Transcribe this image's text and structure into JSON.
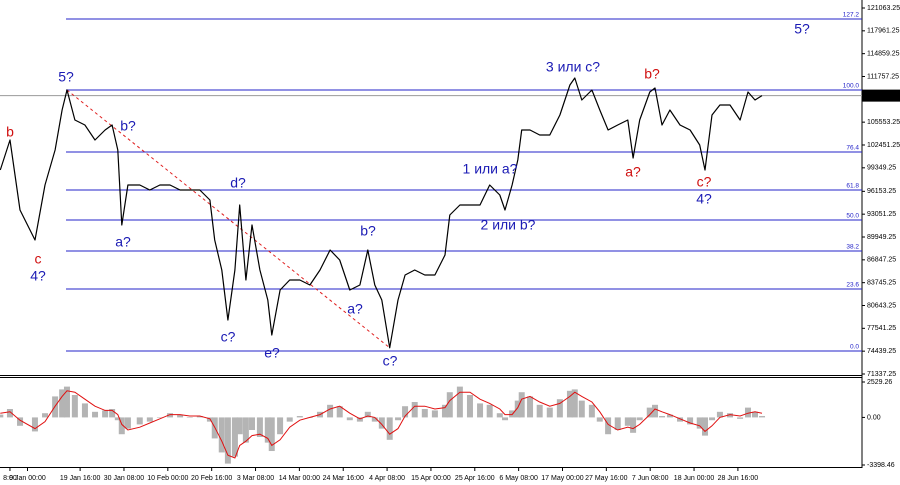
{
  "chart_data": [
    {
      "type": "line",
      "xlim": [
        -6.27,
        190.3
      ],
      "ylim": [
        71200,
        122150
      ],
      "yticks": [
        121063.25,
        117961.25,
        114859.25,
        111757.25,
        105553.25,
        102451.25,
        99349.25,
        96153.25,
        93051.25,
        89949.25,
        86847.25,
        83745.25,
        80643.25,
        77541.25,
        74439.25,
        71337.25
      ],
      "current_price": 109158.38,
      "x": [
        -6.2,
        -4.0,
        -1.7,
        1.7,
        4.0,
        6.3,
        7.9,
        9.0,
        10.8,
        13.1,
        15.4,
        17.7,
        19.3,
        20.6,
        21.5,
        22.9,
        25.6,
        27.9,
        30.2,
        32.5,
        34.8,
        37.0,
        39.3,
        41.6,
        42.7,
        44.3,
        45.7,
        47.3,
        48.4,
        49.8,
        51.2,
        53.0,
        54.8,
        55.7,
        57.6,
        59.8,
        62.1,
        64.4,
        66.7,
        69.0,
        71.2,
        73.5,
        75.8,
        77.6,
        79.2,
        80.8,
        82.6,
        84.5,
        86.1,
        88.3,
        90.6,
        92.9,
        95.2,
        96.3,
        98.6,
        100.9,
        103.2,
        105.4,
        107.7,
        108.9,
        110.5,
        111.8,
        112.7,
        114.6,
        116.8,
        119.1,
        121.4,
        123.7,
        124.8,
        126.4,
        128.7,
        130.5,
        132.4,
        134.6,
        136.9,
        138.1,
        139.6,
        141.9,
        143.1,
        144.7,
        146.5,
        148.8,
        151.1,
        153.3,
        154.5,
        156.1,
        157.9,
        160.2,
        162.5,
        164.3,
        165.9,
        167.5
      ],
      "series": [
        {
          "color": "#000000",
          "values": [
            99050,
            103130,
            93620,
            89540,
            97010,
            101770,
            107200,
            109920,
            105850,
            105170,
            103130,
            104490,
            105170,
            101770,
            91580,
            97010,
            97010,
            96330,
            97010,
            97010,
            96330,
            96330,
            96330,
            94980,
            89540,
            85470,
            78670,
            85470,
            94300,
            84110,
            91580,
            85470,
            81390,
            76630,
            82750,
            84110,
            84110,
            83430,
            85470,
            88180,
            86820,
            82750,
            83430,
            88180,
            83430,
            81390,
            74900,
            81390,
            84790,
            85470,
            84790,
            84790,
            87500,
            92940,
            94300,
            94300,
            94300,
            97010,
            95660,
            93620,
            97010,
            100410,
            104490,
            104490,
            103810,
            103810,
            106530,
            110600,
            111550,
            108560,
            109920,
            107200,
            104490,
            105170,
            105850,
            100680,
            105850,
            109650,
            110190,
            105170,
            107200,
            105170,
            104490,
            102450,
            99050,
            106530,
            107880,
            107880,
            105850,
            109650,
            108560,
            109160
          ]
        }
      ],
      "levels": [
        {
          "value": 119568,
          "label": "127.2"
        },
        {
          "value": 109920,
          "label": "100.0"
        },
        {
          "value": 101498,
          "label": "76.4"
        },
        {
          "value": 96335,
          "label": "61.8"
        },
        {
          "value": 92259,
          "label": "50.0"
        },
        {
          "value": 88046,
          "label": "38.2"
        },
        {
          "value": 82885,
          "label": "23.6"
        },
        {
          "value": 74460,
          "label": "0.0"
        }
      ],
      "level_color": "#2323c8",
      "trendline": {
        "x": [
          9.0,
          82.6
        ],
        "y": [
          109920,
          74900
        ],
        "color": "#e02020"
      },
      "annotations": [
        {
          "text": "b",
          "color": "#d01010"
        },
        {
          "text": "c",
          "color": "#d01010"
        },
        {
          "text": "4?",
          "color": "#1a1ab4"
        },
        {
          "text": "5?",
          "color": "#1a1ab4"
        },
        {
          "text": "b?",
          "color": "#1a1ab4"
        },
        {
          "text": "a?",
          "color": "#1a1ab4"
        },
        {
          "text": "d?",
          "color": "#1a1ab4"
        },
        {
          "text": "c?",
          "color": "#1a1ab4"
        },
        {
          "text": "e?",
          "color": "#1a1ab4"
        },
        {
          "text": "b?",
          "color": "#1a1ab4"
        },
        {
          "text": "a?",
          "color": "#1a1ab4"
        },
        {
          "text": "c?",
          "color": "#1a1ab4"
        },
        {
          "text": "1 или a?",
          "color": "#1a1ab4"
        },
        {
          "text": "2 или b?",
          "color": "#1a1ab4"
        },
        {
          "text": "3 или c?",
          "color": "#1a1ab4"
        },
        {
          "text": "b?",
          "color": "#d01010"
        },
        {
          "text": "a?",
          "color": "#d01010"
        },
        {
          "text": "c?",
          "color": "#d01010"
        },
        {
          "text": "4?",
          "color": "#1a1ab4"
        },
        {
          "text": "5?",
          "color": "#1a1ab4"
        }
      ]
    },
    {
      "type": "oscillator",
      "xlim": [
        -6.27,
        190.3
      ],
      "ylim": [
        -3612,
        2886
      ],
      "yticks": [
        2529.26,
        {
          "value": 0,
          "label": "0.00"
        },
        -3398.46
      ],
      "xticks": [
        {
          "value": -4,
          "label": "8:00"
        },
        {
          "value": 0,
          "label": "9 Jan 00:00"
        },
        {
          "value": 12,
          "label": "19 Jan 16:00"
        },
        {
          "value": 22,
          "label": "30 Jan 08:00"
        },
        {
          "value": 32,
          "label": "10 Feb 00:00"
        },
        {
          "value": 42,
          "label": "20 Feb 16:00"
        },
        {
          "value": 52,
          "label": "3 Mar 08:00"
        },
        {
          "value": 62,
          "label": "14 Mar 00:00"
        },
        {
          "value": 72,
          "label": "24 Mar 16:00"
        },
        {
          "value": 82,
          "label": "4 Apr 08:00"
        },
        {
          "value": 92,
          "label": "15 Apr 00:00"
        },
        {
          "value": 102,
          "label": "25 Apr 16:00"
        },
        {
          "value": 112,
          "label": "6 May 08:00"
        },
        {
          "value": 122,
          "label": "17 May 00:00"
        },
        {
          "value": 132,
          "label": "27 May 16:00"
        },
        {
          "value": 142,
          "label": "7 Jun 08:00"
        },
        {
          "value": 152,
          "label": "18 Jun 00:00"
        },
        {
          "value": 162,
          "label": "28 Jun 16:00"
        }
      ],
      "x": [
        -6.2,
        -4.0,
        -1.7,
        1.7,
        4.0,
        6.3,
        7.9,
        9.0,
        10.8,
        13.1,
        15.4,
        17.7,
        19.3,
        20.6,
        21.5,
        22.9,
        25.6,
        27.9,
        30.2,
        32.5,
        34.8,
        37.0,
        39.3,
        41.6,
        42.7,
        44.3,
        45.7,
        47.3,
        48.4,
        49.8,
        51.2,
        53.0,
        54.8,
        55.7,
        57.6,
        59.8,
        62.1,
        64.4,
        66.7,
        69.0,
        71.2,
        73.5,
        75.8,
        77.6,
        79.2,
        80.8,
        82.6,
        84.5,
        86.1,
        88.3,
        90.6,
        92.9,
        95.2,
        96.3,
        98.6,
        100.9,
        103.2,
        105.4,
        107.7,
        108.9,
        110.5,
        111.8,
        112.7,
        114.6,
        116.8,
        119.1,
        121.4,
        123.7,
        124.8,
        126.4,
        128.7,
        130.5,
        132.4,
        134.6,
        136.9,
        138.1,
        139.6,
        141.9,
        143.1,
        144.7,
        146.5,
        148.8,
        151.1,
        153.3,
        154.5,
        156.1,
        157.9,
        160.2,
        162.5,
        164.3,
        165.9,
        167.5
      ],
      "series": [
        {
          "color": "#b4b4b4",
          "values": [
            200,
            600,
            -600,
            -1000,
            300,
            1500,
            2000,
            2200,
            1600,
            1000,
            400,
            500,
            600,
            -200,
            -1200,
            -800,
            -500,
            -300,
            0,
            300,
            200,
            0,
            100,
            -300,
            -1500,
            -2500,
            -3300,
            -2800,
            -1200,
            -1800,
            -900,
            -1400,
            -1800,
            -2400,
            -1200,
            -300,
            100,
            0,
            400,
            900,
            800,
            -200,
            -300,
            400,
            -300,
            -800,
            -1600,
            -200,
            800,
            1100,
            600,
            500,
            900,
            1800,
            2200,
            1600,
            1000,
            900,
            300,
            -200,
            500,
            1200,
            1800,
            1500,
            900,
            700,
            1300,
            1900,
            2000,
            1200,
            900,
            -300,
            -1200,
            -900,
            -600,
            -1100,
            -200,
            700,
            900,
            100,
            200,
            -300,
            -500,
            -800,
            -1300,
            -200,
            400,
            300,
            -100,
            700,
            400,
            100
          ]
        },
        {
          "color": "#e01010",
          "values": [
            300,
            400,
            -200,
            -800,
            -300,
            800,
            1500,
            1900,
            1800,
            1300,
            800,
            500,
            500,
            200,
            -500,
            -900,
            -700,
            -400,
            -100,
            200,
            200,
            100,
            100,
            -100,
            -700,
            -1700,
            -2700,
            -2900,
            -2000,
            -1700,
            -1300,
            -1200,
            -1500,
            -2000,
            -1600,
            -700,
            -200,
            0,
            200,
            600,
            800,
            300,
            -100,
            100,
            0,
            -500,
            -1200,
            -800,
            100,
            800,
            800,
            600,
            700,
            1200,
            1800,
            1800,
            1300,
            1000,
            600,
            200,
            200,
            700,
            1300,
            1500,
            1100,
            800,
            1000,
            1500,
            1800,
            1500,
            1100,
            400,
            -500,
            -900,
            -700,
            -800,
            -500,
            200,
            600,
            400,
            200,
            -100,
            -400,
            -600,
            -1000,
            -600,
            0,
            200,
            100,
            300,
            400,
            300
          ]
        }
      ]
    }
  ]
}
